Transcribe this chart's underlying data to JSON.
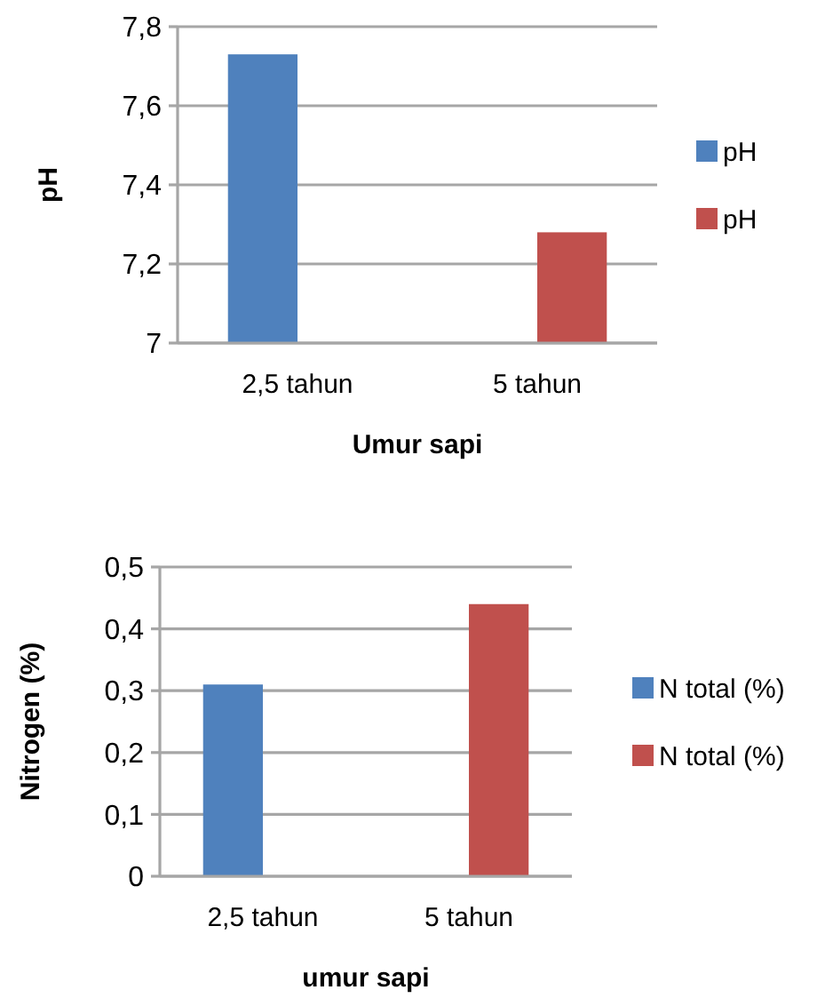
{
  "chart_data": [
    {
      "type": "bar",
      "categories": [
        "2,5 tahun",
        "5 tahun"
      ],
      "xlabel": "Umur sapi",
      "ylabel": "pH",
      "ylim": [
        7,
        7.8
      ],
      "yticks": [
        {
          "value": 7,
          "label": "7"
        },
        {
          "value": 7.2,
          "label": "7,2"
        },
        {
          "value": 7.4,
          "label": "7,4"
        },
        {
          "value": 7.6,
          "label": "7,6"
        },
        {
          "value": 7.8,
          "label": "7,8"
        }
      ],
      "grid": "y",
      "legend": "right",
      "series": [
        {
          "name": "pH",
          "color": "#4f81bd",
          "values": [
            7.73,
            null
          ]
        },
        {
          "name": "pH",
          "color": "#c0504d",
          "values": [
            null,
            7.28
          ]
        }
      ]
    },
    {
      "type": "bar",
      "categories": [
        "2,5 tahun",
        "5 tahun"
      ],
      "xlabel": "umur sapi",
      "ylabel": "Nitrogen (%)",
      "ylim": [
        0,
        0.5
      ],
      "yticks": [
        {
          "value": 0,
          "label": "0"
        },
        {
          "value": 0.1,
          "label": "0,1"
        },
        {
          "value": 0.2,
          "label": "0,2"
        },
        {
          "value": 0.3,
          "label": "0,3"
        },
        {
          "value": 0.4,
          "label": "0,4"
        },
        {
          "value": 0.5,
          "label": "0,5"
        }
      ],
      "grid": "y",
      "legend": "right",
      "series": [
        {
          "name": "N total (%)",
          "color": "#4f81bd",
          "values": [
            0.31,
            null
          ]
        },
        {
          "name": "N total (%)",
          "color": "#c0504d",
          "values": [
            null,
            0.44
          ]
        }
      ]
    }
  ]
}
